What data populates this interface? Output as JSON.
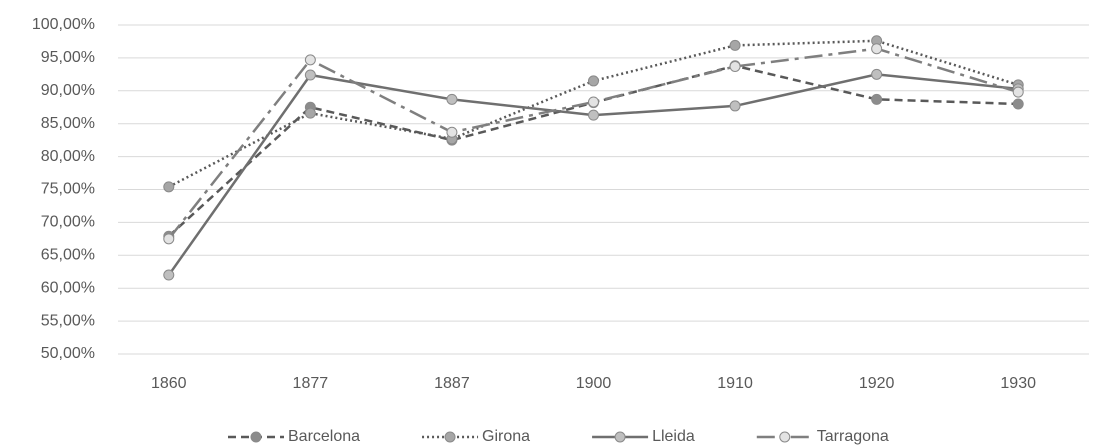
{
  "chart_data": {
    "type": "line",
    "categories": [
      "1860",
      "1877",
      "1887",
      "1900",
      "1910",
      "1920",
      "1930"
    ],
    "series": [
      {
        "name": "Barcelona",
        "color": "#595959",
        "marker_color": "#8c8c8c",
        "line_style": "dashed",
        "values": [
          67.9,
          87.5,
          82.5,
          88.2,
          93.8,
          88.7,
          88.0
        ]
      },
      {
        "name": "Girona",
        "color": "#595959",
        "marker_color": "#a6a6a6",
        "line_style": "dotted",
        "values": [
          75.4,
          86.6,
          82.7,
          91.5,
          96.9,
          97.6,
          90.9
        ]
      },
      {
        "name": "Lleida",
        "color": "#6f6f6f",
        "marker_color": "#bfbfbf",
        "line_style": "solid",
        "values": [
          62.0,
          92.4,
          88.7,
          86.3,
          87.7,
          92.5,
          90.3
        ]
      },
      {
        "name": "Tarragona",
        "color": "#7f7f7f",
        "marker_color": "#e3e3e3",
        "line_style": "dashdot",
        "values": [
          67.5,
          94.7,
          83.7,
          88.3,
          93.7,
          96.4,
          89.8
        ]
      }
    ],
    "ylim": [
      50,
      100
    ],
    "yticks": [
      {
        "value": 50,
        "label": "50,00%"
      },
      {
        "value": 55,
        "label": "55,00%"
      },
      {
        "value": 60,
        "label": "60,00%"
      },
      {
        "value": 65,
        "label": "65,00%"
      },
      {
        "value": 70,
        "label": "70,00%"
      },
      {
        "value": 75,
        "label": "75,00%"
      },
      {
        "value": 80,
        "label": "80,00%"
      },
      {
        "value": 85,
        "label": "85,00%"
      },
      {
        "value": 90,
        "label": "90,00%"
      },
      {
        "value": 95,
        "label": "95,00%"
      },
      {
        "value": 100,
        "label": "100,00%"
      }
    ],
    "grid": true,
    "legend": "bottom"
  }
}
